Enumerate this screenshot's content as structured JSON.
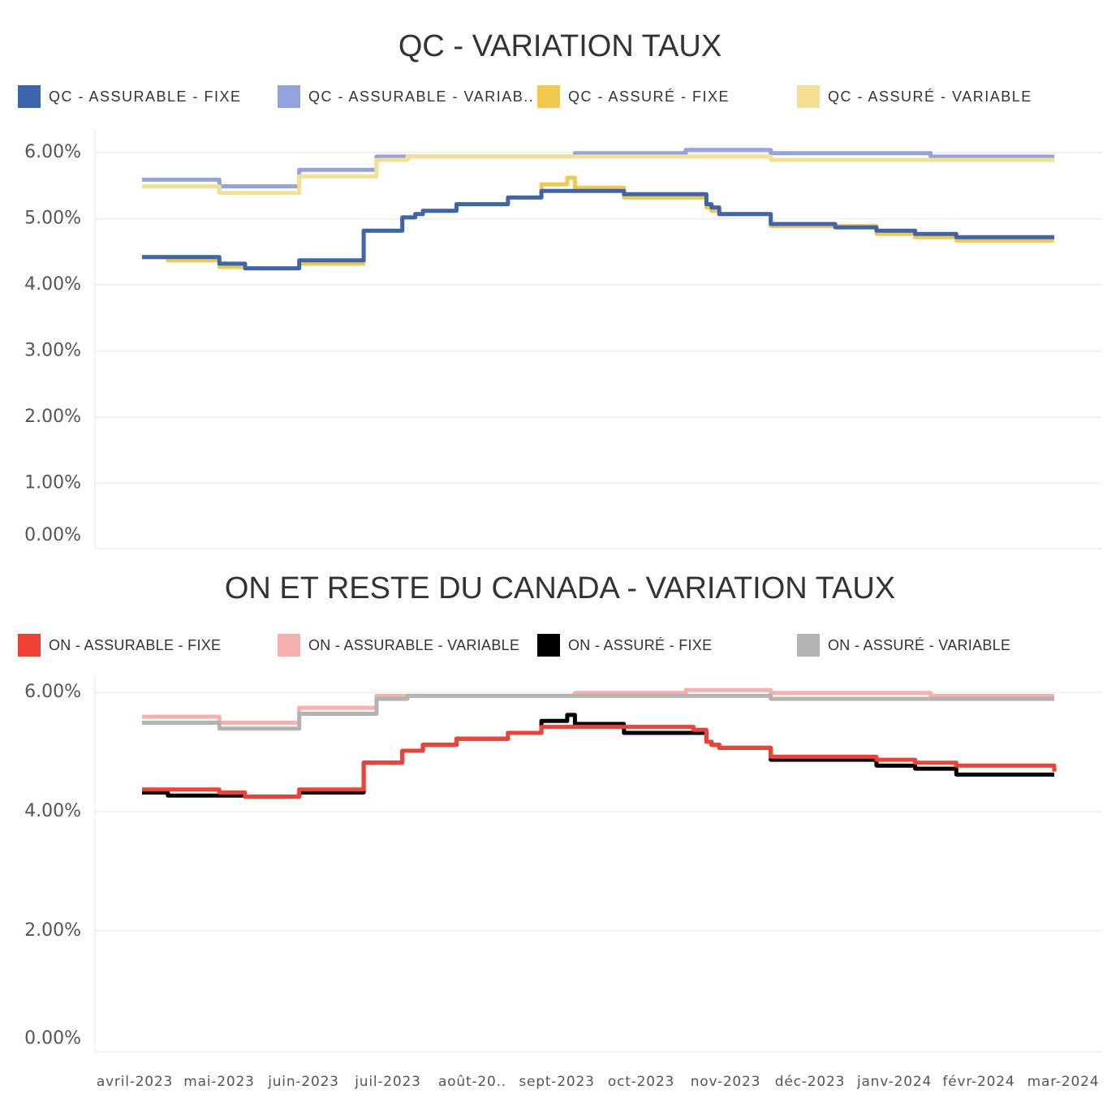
{
  "chart_data": [
    {
      "type": "line",
      "title": "QC - VARIATION TAUX",
      "xlabel": "",
      "ylabel": "",
      "y_ticks": [
        "6.00%",
        "5.00%",
        "4.00%",
        "3.00%",
        "2.00%",
        "1.00%",
        "0.00%"
      ],
      "ylim": [
        0,
        6.1
      ],
      "x_ticks": [],
      "x_range": [
        "2023-04-01",
        "2024-03-20"
      ],
      "legend": "top",
      "grid": true,
      "series": [
        {
          "name": "QC - ASSURABLE - VARIAB..",
          "color": "#93a3dd",
          "x": [
            "2023-04-01",
            "2023-05-01",
            "2023-06-01",
            "2023-07-01",
            "2023-09-16",
            "2023-10-29",
            "2023-12-01",
            "2024-02-01",
            "2024-03-20"
          ],
          "y": [
            5.59,
            5.49,
            5.74,
            5.94,
            5.99,
            6.04,
            5.99,
            5.94,
            5.94
          ]
        },
        {
          "name": "QC - ASSURÉ - VARIABLE",
          "color": "#f5df93",
          "x": [
            "2023-04-01",
            "2023-05-01",
            "2023-06-01",
            "2023-07-01",
            "2023-07-13",
            "2023-12-01",
            "2024-03-20"
          ],
          "y": [
            5.49,
            5.39,
            5.64,
            5.89,
            5.94,
            5.89,
            5.89
          ]
        },
        {
          "name": "QC - ASSURÉ - FIXE",
          "color": "#f2c94c",
          "x": [
            "2023-04-01",
            "2023-04-11",
            "2023-05-01",
            "2023-05-11",
            "2023-06-01",
            "2023-06-26",
            "2023-07-01",
            "2023-07-11",
            "2023-07-13",
            "2023-07-16",
            "2023-07-19",
            "2023-08-01",
            "2023-08-21",
            "2023-09-01",
            "2023-09-03",
            "2023-09-13",
            "2023-09-16",
            "2023-10-01",
            "2023-10-05",
            "2023-11-01",
            "2023-11-06",
            "2023-11-08",
            "2023-11-11",
            "2023-12-01",
            "2023-12-26",
            "2024-01-11",
            "2024-01-26",
            "2024-02-11",
            "2024-03-20"
          ],
          "y": [
            4.42,
            4.37,
            4.27,
            4.25,
            4.32,
            4.82,
            4.82,
            5.02,
            5.02,
            5.07,
            5.12,
            5.22,
            5.32,
            5.32,
            5.52,
            5.62,
            5.47,
            5.47,
            5.32,
            5.32,
            5.17,
            5.12,
            5.07,
            4.89,
            4.89,
            4.77,
            4.72,
            4.67,
            4.67
          ]
        },
        {
          "name": "QC - ASSURABLE - FIXE",
          "color": "#3e64ae",
          "x": [
            "2023-04-01",
            "2023-05-01",
            "2023-05-11",
            "2023-06-01",
            "2023-06-26",
            "2023-07-01",
            "2023-07-11",
            "2023-07-16",
            "2023-07-19",
            "2023-08-01",
            "2023-08-21",
            "2023-09-01",
            "2023-09-03",
            "2023-10-01",
            "2023-10-05",
            "2023-11-01",
            "2023-11-06",
            "2023-11-08",
            "2023-11-11",
            "2023-12-01",
            "2023-12-26",
            "2024-01-11",
            "2024-01-26",
            "2024-02-11",
            "2024-03-20"
          ],
          "y": [
            4.42,
            4.32,
            4.25,
            4.37,
            4.82,
            4.82,
            5.02,
            5.07,
            5.12,
            5.22,
            5.32,
            5.32,
            5.42,
            5.42,
            5.37,
            5.37,
            5.22,
            5.17,
            5.07,
            4.92,
            4.87,
            4.82,
            4.77,
            4.72,
            4.72
          ]
        }
      ]
    },
    {
      "type": "line",
      "title": "ON ET RESTE DU CANADA - VARIATION TAUX",
      "xlabel": "",
      "ylabel": "",
      "y_ticks": [
        "6.00%",
        "4.00%",
        "2.00%",
        "0.00%"
      ],
      "ylim": [
        0,
        6.1
      ],
      "x_ticks": [
        "avril-2023",
        "mai-2023",
        "juin-2023",
        "juil-2023",
        "août-20..",
        "sept-2023",
        "oct-2023",
        "nov-2023",
        "déc-2023",
        "janv-2024",
        "févr-2024",
        "mar-2024"
      ],
      "x_range": [
        "2023-04-01",
        "2024-03-20"
      ],
      "legend": "top",
      "grid": true,
      "series": [
        {
          "name": "ON - ASSURABLE - VARIABLE",
          "color": "#f7b0ad",
          "x": [
            "2023-04-01",
            "2023-05-01",
            "2023-06-01",
            "2023-07-01",
            "2023-07-13",
            "2023-09-16",
            "2023-10-29",
            "2023-12-01",
            "2024-02-01",
            "2024-03-20"
          ],
          "y": [
            5.59,
            5.49,
            5.74,
            5.94,
            5.94,
            5.99,
            6.04,
            5.99,
            5.94,
            5.94
          ]
        },
        {
          "name": "ON - ASSURÉ - VARIABLE",
          "color": "#b3b3b3",
          "x": [
            "2023-04-01",
            "2023-05-01",
            "2023-06-01",
            "2023-07-01",
            "2023-07-13",
            "2023-12-01",
            "2024-03-20"
          ],
          "y": [
            5.49,
            5.39,
            5.64,
            5.89,
            5.94,
            5.89,
            5.89
          ]
        },
        {
          "name": "ON - ASSURÉ - FIXE",
          "color": "#000000",
          "x": [
            "2023-04-01",
            "2023-04-11",
            "2023-05-11",
            "2023-06-01",
            "2023-06-26",
            "2023-07-01",
            "2023-07-11",
            "2023-07-16",
            "2023-07-19",
            "2023-08-01",
            "2023-08-21",
            "2023-09-01",
            "2023-09-03",
            "2023-09-13",
            "2023-09-16",
            "2023-10-01",
            "2023-10-05",
            "2023-11-01",
            "2023-11-06",
            "2023-11-08",
            "2023-11-11",
            "2023-12-01",
            "2023-12-26",
            "2024-01-11",
            "2024-01-26",
            "2024-02-11",
            "2024-03-20"
          ],
          "y": [
            4.32,
            4.27,
            4.25,
            4.32,
            4.82,
            4.82,
            5.02,
            5.02,
            5.12,
            5.22,
            5.32,
            5.32,
            5.52,
            5.62,
            5.47,
            5.47,
            5.32,
            5.32,
            5.17,
            5.12,
            5.07,
            4.87,
            4.87,
            4.77,
            4.72,
            4.62,
            4.62
          ]
        },
        {
          "name": "ON - ASSURABLE - FIXE",
          "color": "#ef4136",
          "x": [
            "2023-04-01",
            "2023-05-01",
            "2023-05-11",
            "2023-06-01",
            "2023-06-26",
            "2023-07-01",
            "2023-07-11",
            "2023-07-19",
            "2023-08-01",
            "2023-08-21",
            "2023-09-01",
            "2023-09-03",
            "2023-10-01",
            "2023-10-05",
            "2023-11-01",
            "2023-11-06",
            "2023-11-08",
            "2023-11-11",
            "2023-12-01",
            "2023-12-26",
            "2024-01-11",
            "2024-01-26",
            "2024-02-11",
            "2024-03-20"
          ],
          "y": [
            4.37,
            4.32,
            4.25,
            4.37,
            4.82,
            4.82,
            5.02,
            5.12,
            5.22,
            5.32,
            5.32,
            5.42,
            5.42,
            5.42,
            5.37,
            5.17,
            5.12,
            5.07,
            4.92,
            4.92,
            4.87,
            4.82,
            4.77,
            4.67
          ]
        }
      ]
    }
  ],
  "legends": [
    [
      {
        "label": "QC - ASSURABLE - FIXE",
        "color": "#3e64ae"
      },
      {
        "label": "QC - ASSURABLE - VARIAB..",
        "color": "#93a3dd"
      },
      {
        "label": "QC - ASSURÉ - FIXE",
        "color": "#f2c94c"
      },
      {
        "label": "QC - ASSURÉ - VARIABLE",
        "color": "#f5df93"
      }
    ],
    [
      {
        "label": "ON - ASSURABLE - FIXE",
        "color": "#ef4136"
      },
      {
        "label": "ON - ASSURABLE - VARIABLE",
        "color": "#f7b0ad"
      },
      {
        "label": "ON - ASSURÉ - FIXE",
        "color": "#000000"
      },
      {
        "label": "ON - ASSURÉ - VARIABLE",
        "color": "#b3b3b3"
      }
    ]
  ]
}
